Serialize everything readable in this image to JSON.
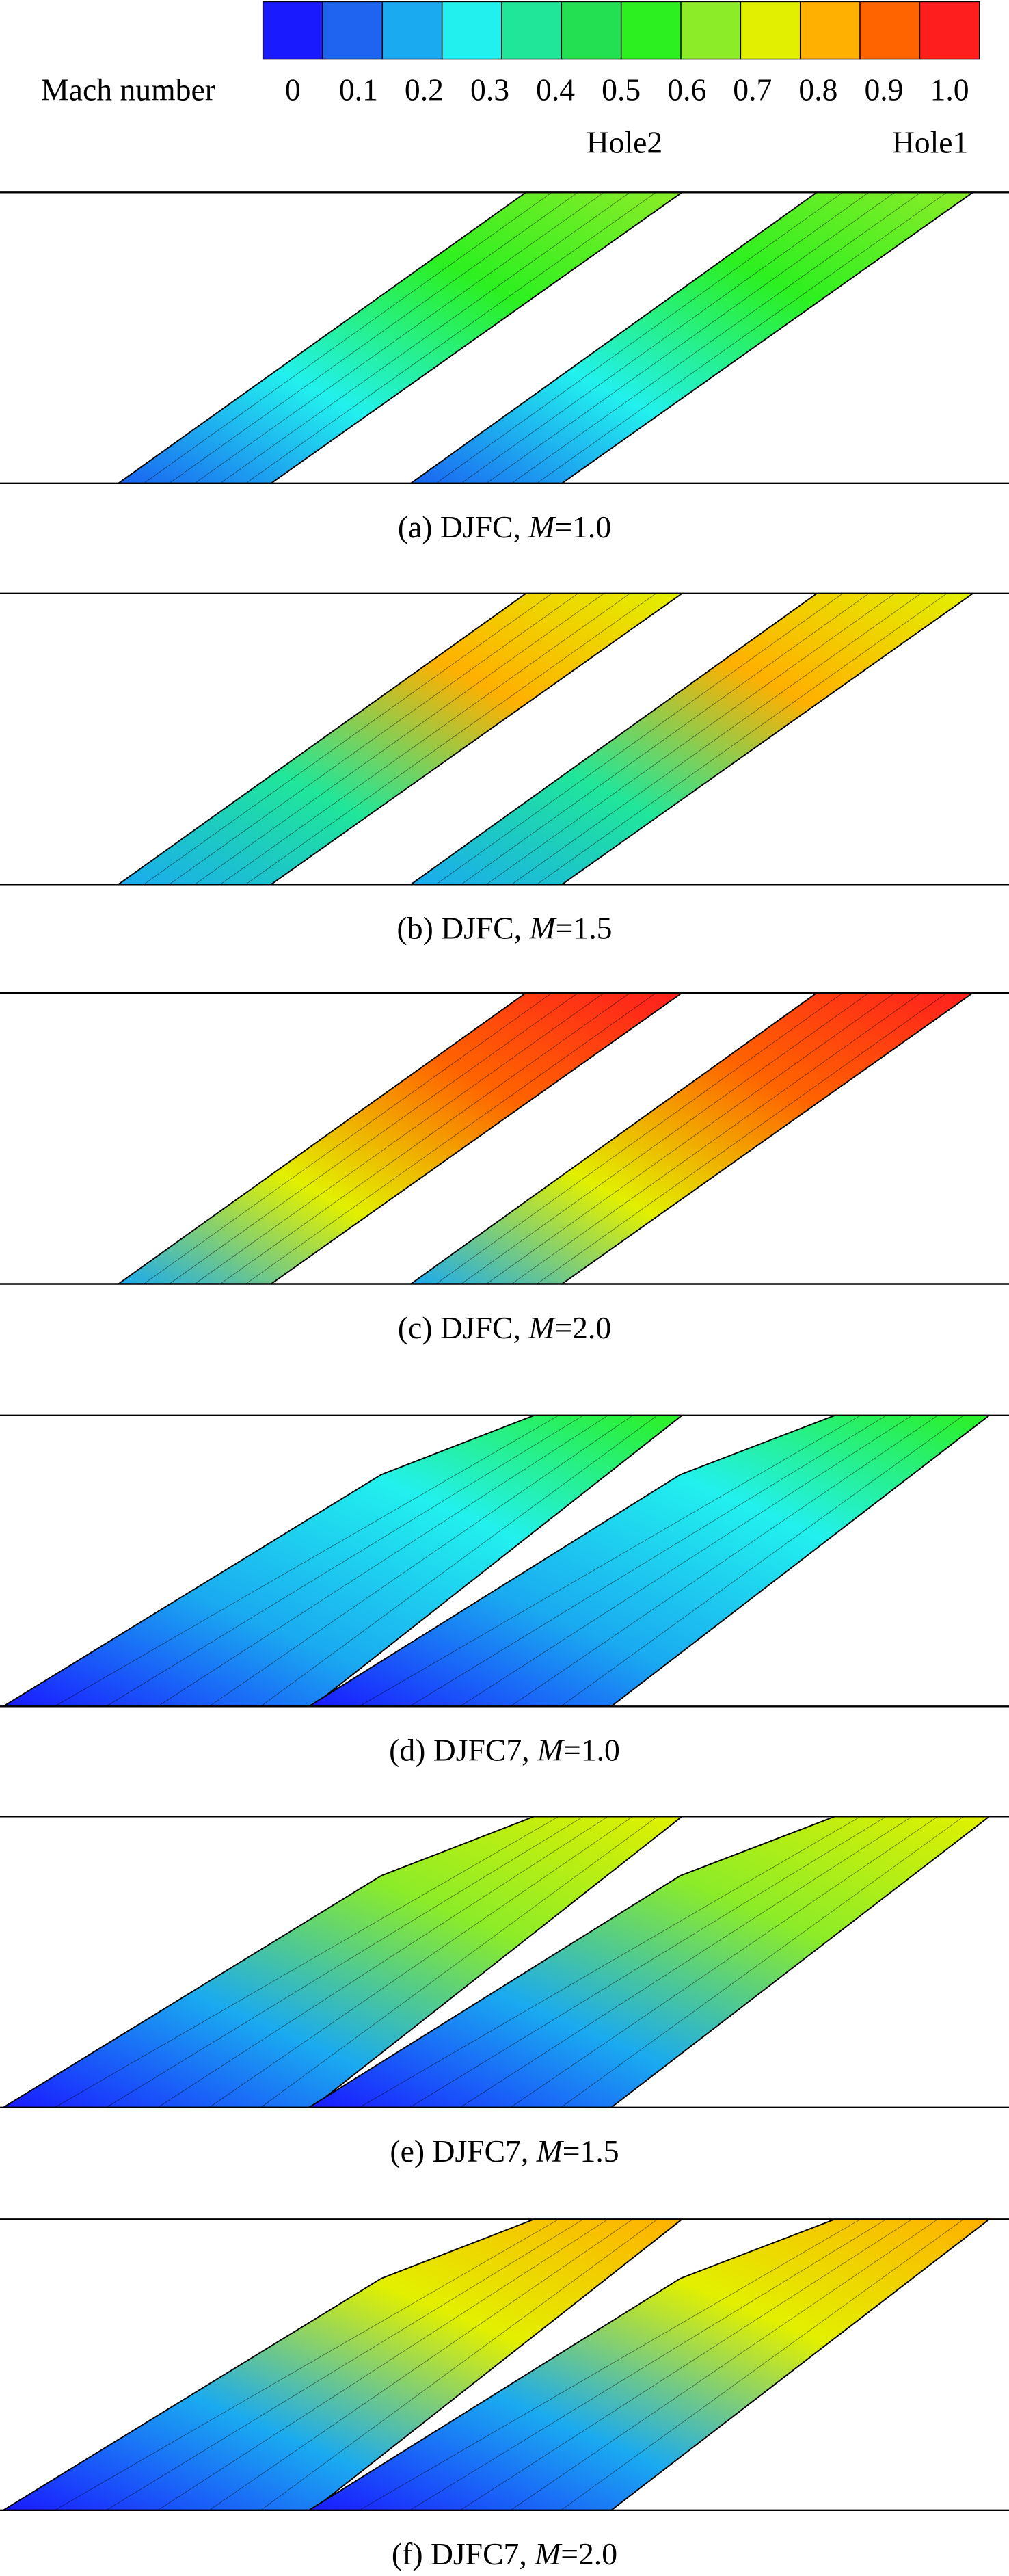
{
  "colorbar": {
    "title": "Mach number",
    "colors": [
      "#1a1aff",
      "#1e64f0",
      "#1aaaf0",
      "#22f0ee",
      "#20e69a",
      "#22e052",
      "#2cf020",
      "#8cec28",
      "#e2f000",
      "#ffb000",
      "#ff6400",
      "#ff1e1e"
    ],
    "ticks": [
      0,
      0.1,
      0.2,
      0.3,
      0.4,
      0.5,
      0.6,
      0.7,
      0.8,
      0.9,
      {
        "value": 1,
        "label": "1.0"
      }
    ]
  },
  "labels": {
    "hole2": "Hole2",
    "hole1": "Hole1"
  },
  "panels": [
    {
      "caption": {
        "prefix": "(a) DJFC, ",
        "variable": "M",
        "suffix": "=1.0"
      }
    },
    {
      "caption": {
        "prefix": "(b) DJFC, ",
        "variable": "M",
        "suffix": "=1.5"
      }
    },
    {
      "caption": {
        "prefix": "(c) DJFC, ",
        "variable": "M",
        "suffix": "=2.0"
      }
    },
    {
      "caption": {
        "prefix": "(d) DJFC7, ",
        "variable": "M",
        "suffix": "=1.0"
      }
    },
    {
      "caption": {
        "prefix": "(e) DJFC7, ",
        "variable": "M",
        "suffix": "=1.5"
      }
    },
    {
      "caption": {
        "prefix": "(f) DJFC7, ",
        "variable": "M",
        "suffix": "=2.0"
      }
    }
  ]
}
